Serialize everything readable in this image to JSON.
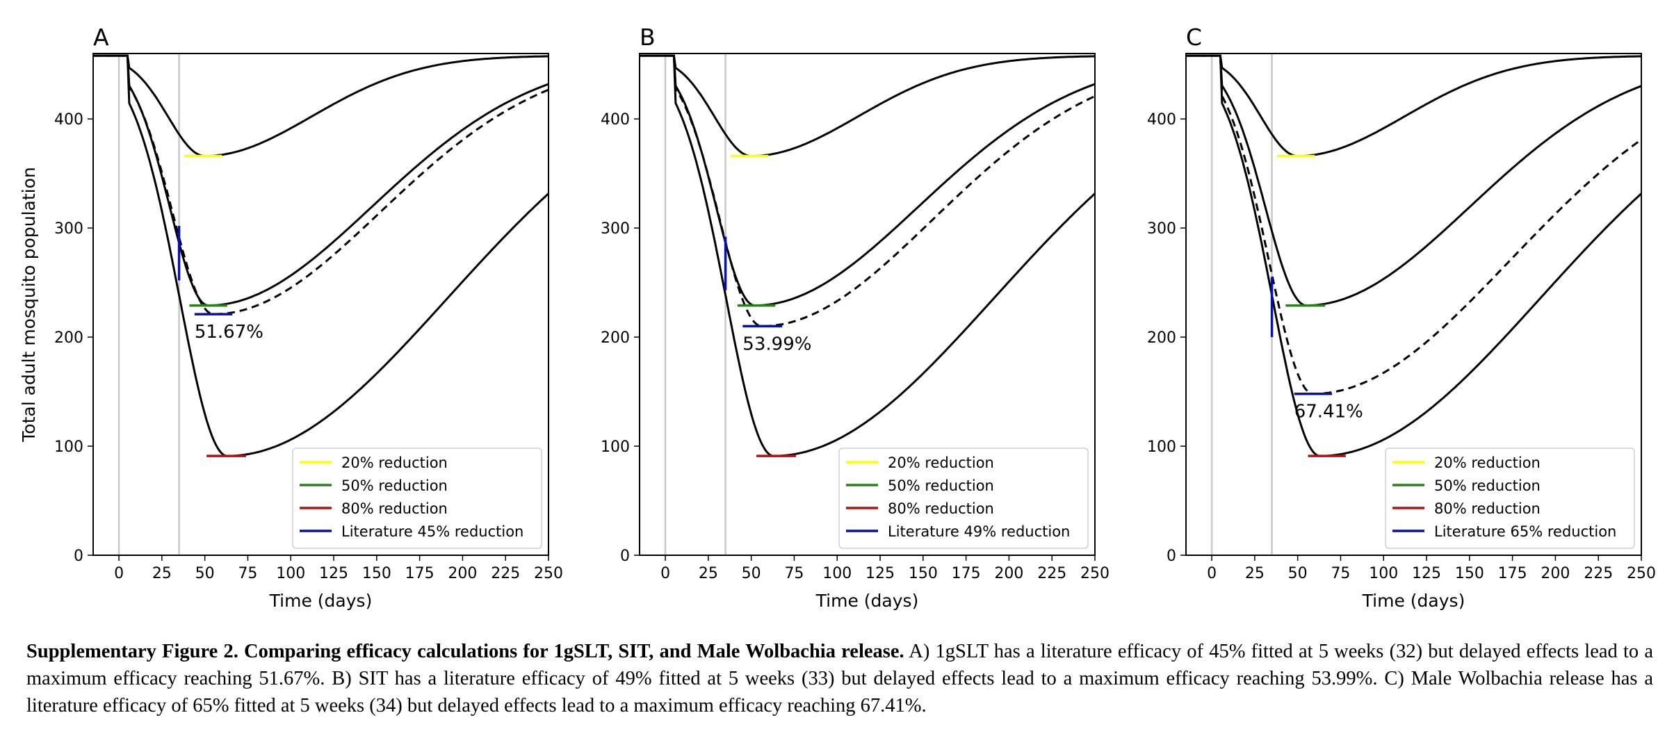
{
  "chart_data": [
    {
      "type": "line",
      "panel": "A",
      "xlabel": "Time (days)",
      "ylabel": "Total adult mosquito population",
      "xlim": [
        -15,
        250
      ],
      "ylim": [
        0,
        460
      ],
      "xticks": [
        0,
        25,
        50,
        75,
        100,
        125,
        150,
        175,
        200,
        225,
        250
      ],
      "yticks": [
        0,
        100,
        200,
        300,
        400
      ],
      "vertical_reference_lines": [
        0,
        35
      ],
      "baseline_population": 458,
      "series": [
        {
          "style": "solid",
          "min_value": 366,
          "min_day": 50,
          "curve": "20% reduction scenario"
        },
        {
          "style": "solid",
          "min_value": 229,
          "min_day": 52,
          "curve": "50% reduction scenario"
        },
        {
          "style": "solid",
          "min_value": 91,
          "min_day": 63,
          "curve": "80% reduction scenario"
        },
        {
          "style": "dashed",
          "min_value": 221,
          "min_day": 55,
          "curve": "fitted intervention"
        }
      ],
      "markers": [
        {
          "color": "#ffff00",
          "value": 366,
          "x_from": 38,
          "x_to": 60
        },
        {
          "color": "#2e7d1e",
          "value": 229,
          "x_from": 41,
          "x_to": 63
        },
        {
          "color": "#b01515",
          "value": 91,
          "x_from": 51,
          "x_to": 74
        },
        {
          "color": "#0a10a0",
          "value": 221,
          "x_from": 44,
          "x_to": 66
        },
        {
          "color": "#0a10a0",
          "orientation": "vertical",
          "x": 35,
          "y_from": 252,
          "y_to": 302
        }
      ],
      "annotation": "51.67%",
      "legend": [
        "20% reduction",
        "50% reduction",
        "80% reduction",
        "Literature 45% reduction"
      ],
      "legend_colors": [
        "#ffff00",
        "#2e7d1e",
        "#b01515",
        "#0a10a0"
      ],
      "legend_position": "lower-right"
    },
    {
      "type": "line",
      "panel": "B",
      "xlabel": "Time (days)",
      "ylabel": "",
      "xlim": [
        -15,
        250
      ],
      "ylim": [
        0,
        460
      ],
      "xticks": [
        0,
        25,
        50,
        75,
        100,
        125,
        150,
        175,
        200,
        225,
        250
      ],
      "yticks": [
        0,
        100,
        200,
        300,
        400
      ],
      "vertical_reference_lines": [
        0,
        35
      ],
      "baseline_population": 458,
      "series": [
        {
          "style": "solid",
          "min_value": 366,
          "min_day": 50,
          "curve": "20% reduction scenario"
        },
        {
          "style": "solid",
          "min_value": 229,
          "min_day": 52,
          "curve": "50% reduction scenario"
        },
        {
          "style": "solid",
          "min_value": 91,
          "min_day": 63,
          "curve": "80% reduction scenario"
        },
        {
          "style": "dashed",
          "min_value": 210,
          "min_day": 56,
          "curve": "fitted intervention"
        }
      ],
      "markers": [
        {
          "color": "#ffff00",
          "value": 366,
          "x_from": 38,
          "x_to": 60
        },
        {
          "color": "#2e7d1e",
          "value": 229,
          "x_from": 42,
          "x_to": 64
        },
        {
          "color": "#b01515",
          "value": 91,
          "x_from": 53,
          "x_to": 76
        },
        {
          "color": "#0a10a0",
          "value": 210,
          "x_from": 45,
          "x_to": 68
        },
        {
          "color": "#0a10a0",
          "orientation": "vertical",
          "x": 35,
          "y_from": 243,
          "y_to": 292
        }
      ],
      "annotation": "53.99%",
      "legend": [
        "20% reduction",
        "50% reduction",
        "80% reduction",
        "Literature 49% reduction"
      ],
      "legend_colors": [
        "#ffff00",
        "#2e7d1e",
        "#b01515",
        "#0a10a0"
      ],
      "legend_position": "lower-right"
    },
    {
      "type": "line",
      "panel": "C",
      "xlabel": "Time (days)",
      "ylabel": "",
      "xlim": [
        -15,
        250
      ],
      "ylim": [
        0,
        460
      ],
      "xticks": [
        0,
        25,
        50,
        75,
        100,
        125,
        150,
        175,
        200,
        225,
        250
      ],
      "yticks": [
        0,
        100,
        200,
        300,
        400
      ],
      "vertical_reference_lines": [
        0,
        35
      ],
      "baseline_population": 458,
      "series": [
        {
          "style": "solid",
          "min_value": 366,
          "min_day": 50,
          "curve": "20% reduction scenario"
        },
        {
          "style": "solid",
          "min_value": 229,
          "min_day": 55,
          "curve": "50% reduction scenario"
        },
        {
          "style": "solid",
          "min_value": 91,
          "min_day": 63,
          "curve": "80% reduction scenario"
        },
        {
          "style": "dashed",
          "min_value": 148,
          "min_day": 59,
          "curve": "fitted intervention"
        }
      ],
      "markers": [
        {
          "color": "#ffff00",
          "value": 366,
          "x_from": 38,
          "x_to": 60
        },
        {
          "color": "#2e7d1e",
          "value": 229,
          "x_from": 43,
          "x_to": 66
        },
        {
          "color": "#b01515",
          "value": 91,
          "x_from": 56,
          "x_to": 78
        },
        {
          "color": "#0a10a0",
          "value": 148,
          "x_from": 48,
          "x_to": 70
        },
        {
          "color": "#0a10a0",
          "orientation": "vertical",
          "x": 35,
          "y_from": 200,
          "y_to": 255
        }
      ],
      "annotation": "67.41%",
      "legend": [
        "20% reduction",
        "50% reduction",
        "80% reduction",
        "Literature 65% reduction"
      ],
      "legend_colors": [
        "#ffff00",
        "#2e7d1e",
        "#b01515",
        "#0a10a0"
      ],
      "legend_position": "lower-right"
    }
  ],
  "caption": {
    "bold": "Supplementary Figure 2. Comparing efficacy calculations for 1gSLT, SIT, and Male Wolbachia release.",
    "text": " A) 1gSLT has a literature efficacy of 45% fitted at 5 weeks (32) but delayed effects lead to a maximum efficacy reaching 51.67%. B) SIT has a literature efficacy of 49% fitted at 5 weeks (33) but delayed effects lead to a maximum efficacy reaching 53.99%. C) Male Wolbachia release has a literature efficacy of 65% fitted at 5 weeks (34) but delayed effects lead to a maximum efficacy reaching 67.41%."
  }
}
